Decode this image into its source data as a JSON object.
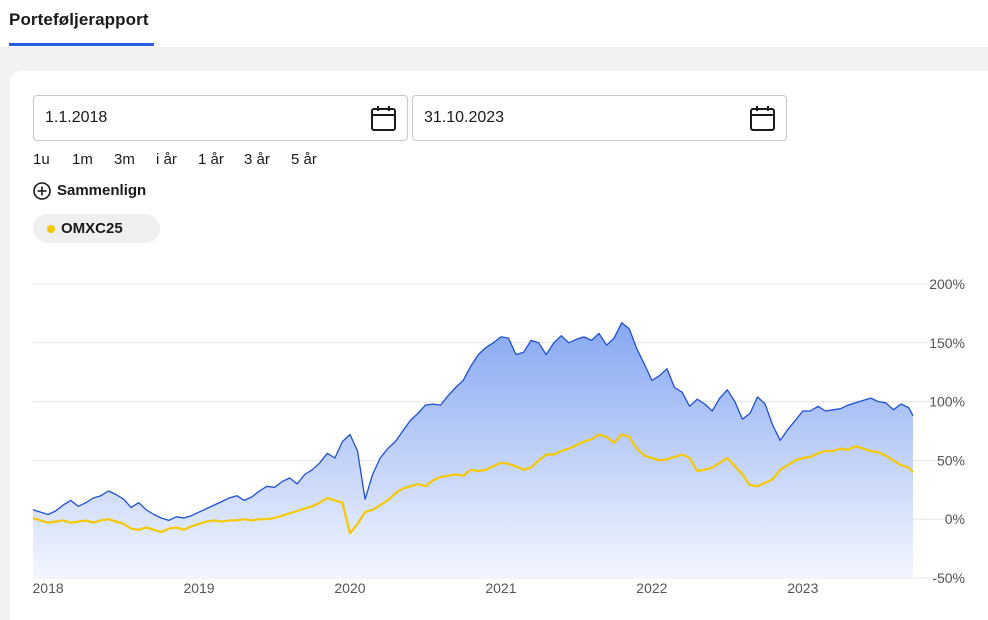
{
  "header": {
    "title": "Porteføljerapport"
  },
  "date_range": {
    "from": "1.1.2018",
    "to": "31.10.2023"
  },
  "periods": [
    "1u",
    "1m",
    "3m",
    "i år",
    "1 år",
    "3 år",
    "5 år"
  ],
  "compare": {
    "label": "Sammenlign"
  },
  "comparison_chip": {
    "label": "OMXC25",
    "color": "#f5c800"
  },
  "colors": {
    "accent": "#2b5ce6",
    "portfolio_line": "#1f4fd6",
    "index_line": "#f5c800"
  },
  "chart_data": {
    "type": "area",
    "title": "",
    "xlabel": "",
    "ylabel": "",
    "x_tick_labels": [
      "2018",
      "2019",
      "2020",
      "2021",
      "2022",
      "2023"
    ],
    "y_tick_labels": [
      "200%",
      "150%",
      "100%",
      "50%",
      "0%",
      "-50%"
    ],
    "ylim": [
      -50,
      200
    ],
    "grid": true,
    "series": [
      {
        "name": "",
        "style": "area",
        "x": [
          2018.0,
          2018.05,
          2018.1,
          2018.15,
          2018.2,
          2018.25,
          2018.3,
          2018.35,
          2018.4,
          2018.45,
          2018.5,
          2018.55,
          2018.6,
          2018.65,
          2018.7,
          2018.75,
          2018.8,
          2018.85,
          2018.9,
          2018.95,
          2019.0,
          2019.05,
          2019.1,
          2019.15,
          2019.2,
          2019.25,
          2019.3,
          2019.35,
          2019.4,
          2019.45,
          2019.5,
          2019.55,
          2019.6,
          2019.65,
          2019.7,
          2019.75,
          2019.8,
          2019.85,
          2019.9,
          2019.95,
          2020.0,
          2020.05,
          2020.1,
          2020.15,
          2020.2,
          2020.25,
          2020.3,
          2020.35,
          2020.4,
          2020.45,
          2020.5,
          2020.55,
          2020.6,
          2020.65,
          2020.7,
          2020.75,
          2020.8,
          2020.85,
          2020.9,
          2020.95,
          2021.0,
          2021.05,
          2021.1,
          2021.15,
          2021.2,
          2021.25,
          2021.3,
          2021.35,
          2021.4,
          2021.45,
          2021.5,
          2021.55,
          2021.6,
          2021.65,
          2021.7,
          2021.75,
          2021.8,
          2021.85,
          2021.9,
          2021.95,
          2022.0,
          2022.05,
          2022.1,
          2022.15,
          2022.2,
          2022.25,
          2022.3,
          2022.35,
          2022.4,
          2022.45,
          2022.5,
          2022.55,
          2022.6,
          2022.65,
          2022.7,
          2022.75,
          2022.8,
          2022.85,
          2022.9,
          2022.95,
          2023.0,
          2023.05,
          2023.1,
          2023.15,
          2023.2,
          2023.25,
          2023.3,
          2023.35,
          2023.4,
          2023.45,
          2023.5,
          2023.55,
          2023.6,
          2023.65,
          2023.7,
          2023.75,
          2023.8,
          2023.83
        ],
        "values": [
          8,
          6,
          4,
          7,
          12,
          16,
          11,
          14,
          18,
          20,
          24,
          21,
          17,
          10,
          14,
          8,
          4,
          1,
          -1,
          2,
          1,
          3,
          6,
          9,
          12,
          15,
          18,
          20,
          16,
          19,
          24,
          28,
          27,
          32,
          35,
          30,
          38,
          42,
          48,
          56,
          52,
          66,
          72,
          58,
          17,
          38,
          52,
          60,
          66,
          75,
          84,
          90,
          97,
          98,
          97,
          105,
          112,
          118,
          130,
          140,
          146,
          150,
          155,
          154,
          140,
          142,
          152,
          150,
          140,
          150,
          156,
          150,
          153,
          155,
          152,
          158,
          148,
          154,
          167,
          162,
          145,
          132,
          118,
          122,
          128,
          112,
          108,
          96,
          102,
          98,
          92,
          103,
          110,
          100,
          85,
          90,
          104,
          98,
          80,
          67,
          76,
          84,
          92,
          92,
          96,
          92,
          93,
          94,
          97,
          99,
          101,
          103,
          100,
          99,
          93,
          98,
          95,
          88
        ]
      },
      {
        "name": "OMXC25",
        "style": "line",
        "x": [
          2018.0,
          2018.05,
          2018.1,
          2018.15,
          2018.2,
          2018.25,
          2018.3,
          2018.35,
          2018.4,
          2018.45,
          2018.5,
          2018.55,
          2018.6,
          2018.65,
          2018.7,
          2018.75,
          2018.8,
          2018.85,
          2018.9,
          2018.95,
          2019.0,
          2019.05,
          2019.1,
          2019.15,
          2019.2,
          2019.25,
          2019.3,
          2019.35,
          2019.4,
          2019.45,
          2019.5,
          2019.55,
          2019.6,
          2019.65,
          2019.7,
          2019.75,
          2019.8,
          2019.85,
          2019.9,
          2019.95,
          2020.0,
          2020.05,
          2020.1,
          2020.15,
          2020.2,
          2020.25,
          2020.3,
          2020.35,
          2020.4,
          2020.45,
          2020.5,
          2020.55,
          2020.6,
          2020.65,
          2020.7,
          2020.75,
          2020.8,
          2020.85,
          2020.9,
          2020.95,
          2021.0,
          2021.05,
          2021.1,
          2021.15,
          2021.2,
          2021.25,
          2021.3,
          2021.35,
          2021.4,
          2021.45,
          2021.5,
          2021.55,
          2021.6,
          2021.65,
          2021.7,
          2021.75,
          2021.8,
          2021.85,
          2021.9,
          2021.95,
          2022.0,
          2022.05,
          2022.1,
          2022.15,
          2022.2,
          2022.25,
          2022.3,
          2022.35,
          2022.4,
          2022.45,
          2022.5,
          2022.55,
          2022.6,
          2022.65,
          2022.7,
          2022.75,
          2022.8,
          2022.85,
          2022.9,
          2022.95,
          2023.0,
          2023.05,
          2023.1,
          2023.15,
          2023.2,
          2023.25,
          2023.3,
          2023.35,
          2023.4,
          2023.45,
          2023.5,
          2023.55,
          2023.6,
          2023.65,
          2023.7,
          2023.75,
          2023.8,
          2023.83
        ],
        "values": [
          1,
          -1,
          -3,
          -2,
          -1,
          -3,
          -2,
          -1,
          -3,
          -1,
          0,
          -2,
          -4,
          -8,
          -9,
          -7,
          -9,
          -11,
          -8,
          -7,
          -9,
          -6,
          -4,
          -2,
          -1,
          -2,
          -1,
          -1,
          0,
          -1,
          0,
          0,
          1,
          3,
          5,
          7,
          9,
          11,
          14,
          18,
          16,
          14,
          -12,
          -4,
          6,
          8,
          12,
          16,
          22,
          26,
          28,
          30,
          28,
          33,
          36,
          37,
          38,
          37,
          42,
          41,
          42,
          45,
          48,
          47,
          45,
          42,
          44,
          50,
          55,
          55,
          58,
          60,
          63,
          66,
          68,
          72,
          70,
          65,
          72,
          70,
          60,
          54,
          52,
          50,
          51,
          53,
          55,
          52,
          41,
          42,
          44,
          48,
          52,
          45,
          38,
          29,
          28,
          31,
          34,
          42,
          46,
          50,
          52,
          53,
          56,
          58,
          58,
          60,
          59,
          62,
          60,
          58,
          57,
          54,
          50,
          46,
          44,
          40
        ]
      }
    ]
  }
}
